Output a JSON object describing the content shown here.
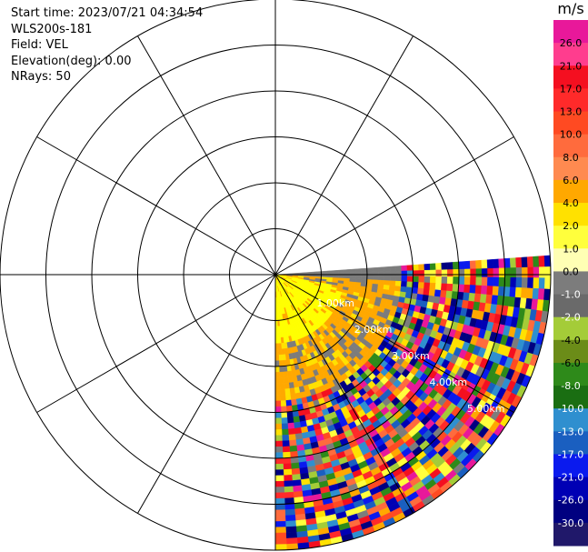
{
  "header": {
    "start_time": "Start time: 2023/07/21 04:34:54",
    "instrument": "WLS200s-181",
    "field": "Field: VEL",
    "elevation": "Elevation(deg): 0.00",
    "nrays": "NRays: 50"
  },
  "colorbar": {
    "unit": "m/s",
    "ticks": [
      "26.0",
      "21.0",
      "17.0",
      "13.0",
      "10.0",
      "8.0",
      "6.0",
      "4.0",
      "2.0",
      "1.0",
      "0.0",
      "-1.0",
      "-2.0",
      "-4.0",
      "-6.0",
      "-8.0",
      "-10.0",
      "-13.0",
      "-17.0",
      "-21.0",
      "-26.0",
      "-30.0"
    ],
    "colors": [
      "#e8189a",
      "#ff3d8e",
      "#f40f20",
      "#ff2a2a",
      "#ff4a22",
      "#ff6b3d",
      "#ff8a50",
      "#ffa800",
      "#ffe100",
      "#ffff3c",
      "#ffffb4",
      "#7c7c7c",
      "#6a6a6a",
      "#a4cc38",
      "#6b8c18",
      "#2e8a1a",
      "#1a6e12",
      "#2f8fcf",
      "#1a5fc0",
      "#0a1aee",
      "#0000b4",
      "#000080",
      "#20186a"
    ]
  },
  "chart_data": {
    "type": "heatmap",
    "projection": "polar-ppi",
    "field": "VEL",
    "units": "m/s",
    "range_rings_km": [
      1,
      2,
      3,
      4,
      5,
      6
    ],
    "range_ring_labels": [
      "1.00km",
      "2.00km",
      "3.00km",
      "4.00km",
      "5.00km"
    ],
    "max_range_km": 6,
    "spokes_deg": [
      0,
      30,
      60,
      90,
      120,
      150,
      180,
      210,
      240,
      270,
      300,
      330
    ],
    "sector_azimuth_deg": [
      90,
      180
    ],
    "nrays": 50,
    "colorbar_range": [
      -30,
      26
    ]
  }
}
